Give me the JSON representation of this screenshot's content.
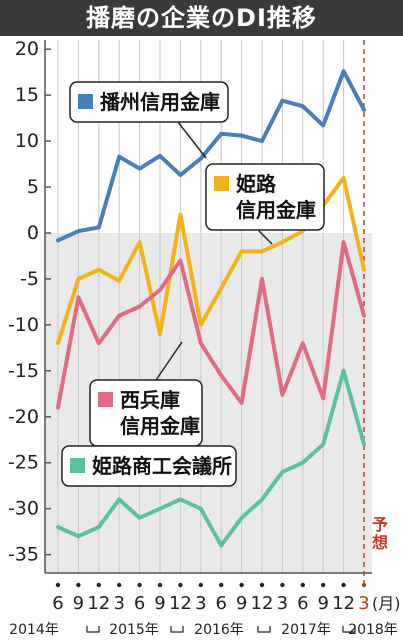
{
  "title": "播磨の企業のDI推移",
  "chart_data": {
    "type": "line",
    "x_labels": [
      "6",
      "9",
      "12",
      "3",
      "6",
      "9",
      "12",
      "3",
      "6",
      "9",
      "12",
      "3",
      "6",
      "9",
      "12",
      "3"
    ],
    "x_unit": "(月)",
    "years": [
      "2014年",
      "2015年",
      "2016年",
      "2017年",
      "2018年"
    ],
    "forecast_label": "予想",
    "ylim": [
      -37,
      21
    ],
    "yticks": [
      20,
      15,
      10,
      5,
      0,
      -5,
      -10,
      -15,
      -20,
      -25,
      -30,
      -35
    ],
    "grid": "vertical",
    "series": [
      {
        "name": "播州信用金庫",
        "color": "#4a7fb5",
        "values": [
          -0.8,
          0.2,
          0.6,
          8.3,
          7.0,
          8.4,
          6.3,
          8.1,
          10.8,
          10.6,
          10.0,
          14.4,
          13.8,
          11.7,
          17.6,
          13.4
        ]
      },
      {
        "name": "姫路\n信用金庫",
        "color": "#f2b21a",
        "values": [
          -12.0,
          -5.0,
          -4.0,
          -5.2,
          -1.0,
          -11.0,
          2.0,
          -10.0,
          -6.0,
          -2.0,
          -2.0,
          -1.0,
          0.2,
          3.0,
          6.0,
          -4.0
        ]
      },
      {
        "name": "西兵庫\n信用金庫",
        "color": "#e26b84",
        "values": [
          -19.0,
          -7.0,
          -12.0,
          -9.0,
          -8.0,
          -6.2,
          -3.0,
          -12.0,
          -15.5,
          -18.5,
          -5.0,
          -17.6,
          -12.0,
          -18.0,
          -1.0,
          -9.0
        ]
      },
      {
        "name": "姫路商工会議所",
        "color": "#5cbfa2",
        "values": [
          -32.0,
          -33.0,
          -32.0,
          -29.0,
          -31.0,
          -30.0,
          -29.0,
          -30.0,
          -34.0,
          -31.0,
          -29.0,
          -26.0,
          -25.0,
          -23.0,
          -15.0,
          -23.0
        ]
      }
    ]
  }
}
